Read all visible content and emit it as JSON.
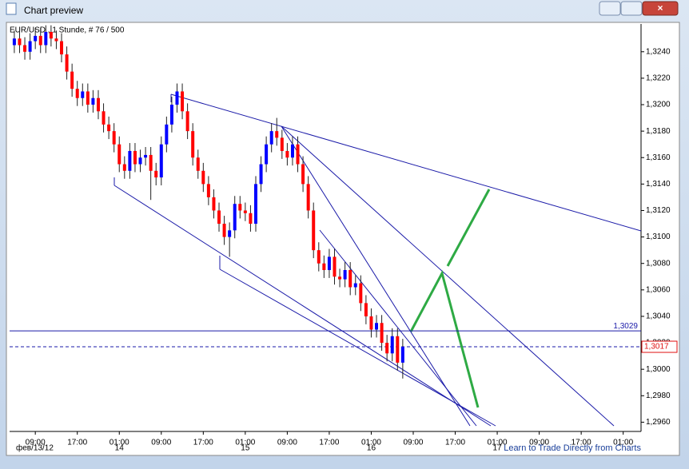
{
  "window_title": "Chart preview",
  "chart_data": {
    "type": "candlestick",
    "title": "EUR/USD , 1 Stunde, # 76 / 500",
    "open": [
      1.3245,
      1.325,
      1.3245,
      1.324,
      1.3248,
      1.3252,
      1.3245,
      1.3255,
      1.325,
      1.3248,
      1.3238,
      1.3225,
      1.3212,
      1.3205,
      1.321,
      1.32,
      1.3205,
      1.3195,
      1.3185,
      1.318,
      1.317,
      1.3155,
      1.315,
      1.3165,
      1.3155,
      1.316,
      1.3162,
      1.315,
      1.3145,
      1.317,
      1.3185,
      1.32,
      1.321,
      1.3195,
      1.318,
      1.316,
      1.315,
      1.314,
      1.313,
      1.312,
      1.311,
      1.31,
      1.3105,
      1.3125,
      1.312,
      1.3118,
      1.311,
      1.314,
      1.3155,
      1.317,
      1.318,
      1.3175,
      1.3165,
      1.316,
      1.317,
      1.3155,
      1.314,
      1.312,
      1.309,
      1.308,
      1.3075,
      1.3085,
      1.307,
      1.3068,
      1.3075,
      1.3062,
      1.3065,
      1.305,
      1.304,
      1.303,
      1.3035,
      1.302,
      1.3012,
      1.3025,
      1.3005
    ],
    "high": [
      1.3256,
      1.3256,
      1.3251,
      1.3254,
      1.3258,
      1.3258,
      1.326,
      1.326,
      1.3256,
      1.3254,
      1.3244,
      1.3231,
      1.3218,
      1.3216,
      1.3216,
      1.3211,
      1.3211,
      1.3201,
      1.3191,
      1.3186,
      1.3176,
      1.3161,
      1.3171,
      1.3171,
      1.3166,
      1.3168,
      1.3168,
      1.3156,
      1.3176,
      1.3191,
      1.3206,
      1.3216,
      1.3216,
      1.3201,
      1.3186,
      1.3166,
      1.3156,
      1.3146,
      1.3136,
      1.3126,
      1.3116,
      1.3111,
      1.3131,
      1.3131,
      1.3126,
      1.3124,
      1.3146,
      1.3161,
      1.3176,
      1.3186,
      1.319,
      1.3181,
      1.3171,
      1.3176,
      1.3176,
      1.3161,
      1.3146,
      1.3126,
      1.3096,
      1.3086,
      1.3091,
      1.3091,
      1.3076,
      1.3081,
      1.3081,
      1.3071,
      1.3071,
      1.3056,
      1.3046,
      1.3041,
      1.3041,
      1.3026,
      1.3031,
      1.3031,
      1.3023
    ],
    "low": [
      1.3239,
      1.3239,
      1.3234,
      1.3234,
      1.3242,
      1.3239,
      1.3239,
      1.3244,
      1.3242,
      1.3232,
      1.3219,
      1.3206,
      1.3199,
      1.3199,
      1.3194,
      1.3194,
      1.3189,
      1.3179,
      1.3174,
      1.3164,
      1.3149,
      1.3144,
      1.3144,
      1.3149,
      1.3149,
      1.3154,
      1.3128,
      1.3139,
      1.3139,
      1.3164,
      1.3179,
      1.3194,
      1.3189,
      1.3174,
      1.3154,
      1.3144,
      1.3134,
      1.3124,
      1.3114,
      1.3104,
      1.3094,
      1.3085,
      1.3099,
      1.3114,
      1.3112,
      1.3104,
      1.3104,
      1.3134,
      1.3149,
      1.3164,
      1.3169,
      1.3159,
      1.3154,
      1.3154,
      1.3149,
      1.3134,
      1.3114,
      1.3084,
      1.3074,
      1.3069,
      1.3069,
      1.3064,
      1.3062,
      1.3062,
      1.3056,
      1.3056,
      1.3044,
      1.3034,
      1.3024,
      1.3024,
      1.3014,
      1.3006,
      1.3006,
      1.2999,
      1.2993
    ],
    "close": [
      1.325,
      1.3245,
      1.324,
      1.3248,
      1.3252,
      1.3245,
      1.3255,
      1.325,
      1.3248,
      1.3238,
      1.3225,
      1.3212,
      1.3205,
      1.321,
      1.32,
      1.3205,
      1.3195,
      1.3185,
      1.318,
      1.317,
      1.3155,
      1.315,
      1.3165,
      1.3155,
      1.316,
      1.3162,
      1.315,
      1.3145,
      1.317,
      1.3185,
      1.32,
      1.321,
      1.3195,
      1.318,
      1.316,
      1.315,
      1.314,
      1.313,
      1.312,
      1.311,
      1.31,
      1.3105,
      1.3125,
      1.312,
      1.3118,
      1.311,
      1.314,
      1.3155,
      1.317,
      1.318,
      1.3175,
      1.3165,
      1.316,
      1.317,
      1.3155,
      1.314,
      1.312,
      1.309,
      1.308,
      1.3075,
      1.3085,
      1.307,
      1.3068,
      1.3075,
      1.3062,
      1.3065,
      1.305,
      1.304,
      1.303,
      1.3035,
      1.302,
      1.3012,
      1.3025,
      1.3005,
      1.3017
    ],
    "up_color": "#0000ff",
    "down_color": "#ff0000",
    "xlim": [
      -0.9,
      119.4
    ],
    "xticks": [
      {
        "value": 4,
        "label": "09:00"
      },
      {
        "value": 12,
        "label": "17:00"
      },
      {
        "value": 20,
        "label": "01:00"
      },
      {
        "value": 28,
        "label": "09:00"
      },
      {
        "value": 36,
        "label": "17:00"
      },
      {
        "value": 44,
        "label": "01:00"
      },
      {
        "value": 52,
        "label": "09:00"
      },
      {
        "value": 60,
        "label": "17:00"
      },
      {
        "value": 68,
        "label": "01:00"
      },
      {
        "value": 76,
        "label": "09:00"
      },
      {
        "value": 84,
        "label": "17:00"
      },
      {
        "value": 92,
        "label": "01:00"
      },
      {
        "value": 100,
        "label": "09:00"
      },
      {
        "value": 108,
        "label": "17:00"
      },
      {
        "value": 116,
        "label": "01:00"
      }
    ],
    "date_labels": [
      {
        "value": 4,
        "label": "фев/13/12"
      },
      {
        "value": 20,
        "label": "14"
      },
      {
        "value": 44,
        "label": "15"
      },
      {
        "value": 68,
        "label": "16"
      },
      {
        "value": 92,
        "label": "17"
      }
    ],
    "ylim": [
      1.2953,
      1.3261
    ],
    "yticks": [
      {
        "value": 1.296,
        "label": "1,2960"
      },
      {
        "value": 1.298,
        "label": "1,2980"
      },
      {
        "value": 1.3,
        "label": "1,3000"
      },
      {
        "value": 1.302,
        "label": "1,3020"
      },
      {
        "value": 1.304,
        "label": "1,3040"
      },
      {
        "value": 1.306,
        "label": "1,3060"
      },
      {
        "value": 1.308,
        "label": "1,3080"
      },
      {
        "value": 1.31,
        "label": "1,3100"
      },
      {
        "value": 1.312,
        "label": "1,3120"
      },
      {
        "value": 1.314,
        "label": "1,3140"
      },
      {
        "value": 1.316,
        "label": "1,3160"
      },
      {
        "value": 1.318,
        "label": "1,3180"
      },
      {
        "value": 1.32,
        "label": "1,3200"
      },
      {
        "value": 1.322,
        "label": "1,3220"
      },
      {
        "value": 1.324,
        "label": "1,3240"
      }
    ],
    "hlines": [
      {
        "value": 1.3029,
        "label": "1,3029",
        "style": "solid"
      },
      {
        "value": 1.3017,
        "label": "1,3017",
        "style": "dashed"
      }
    ],
    "link": "Learn to Trade Directly from Charts"
  }
}
